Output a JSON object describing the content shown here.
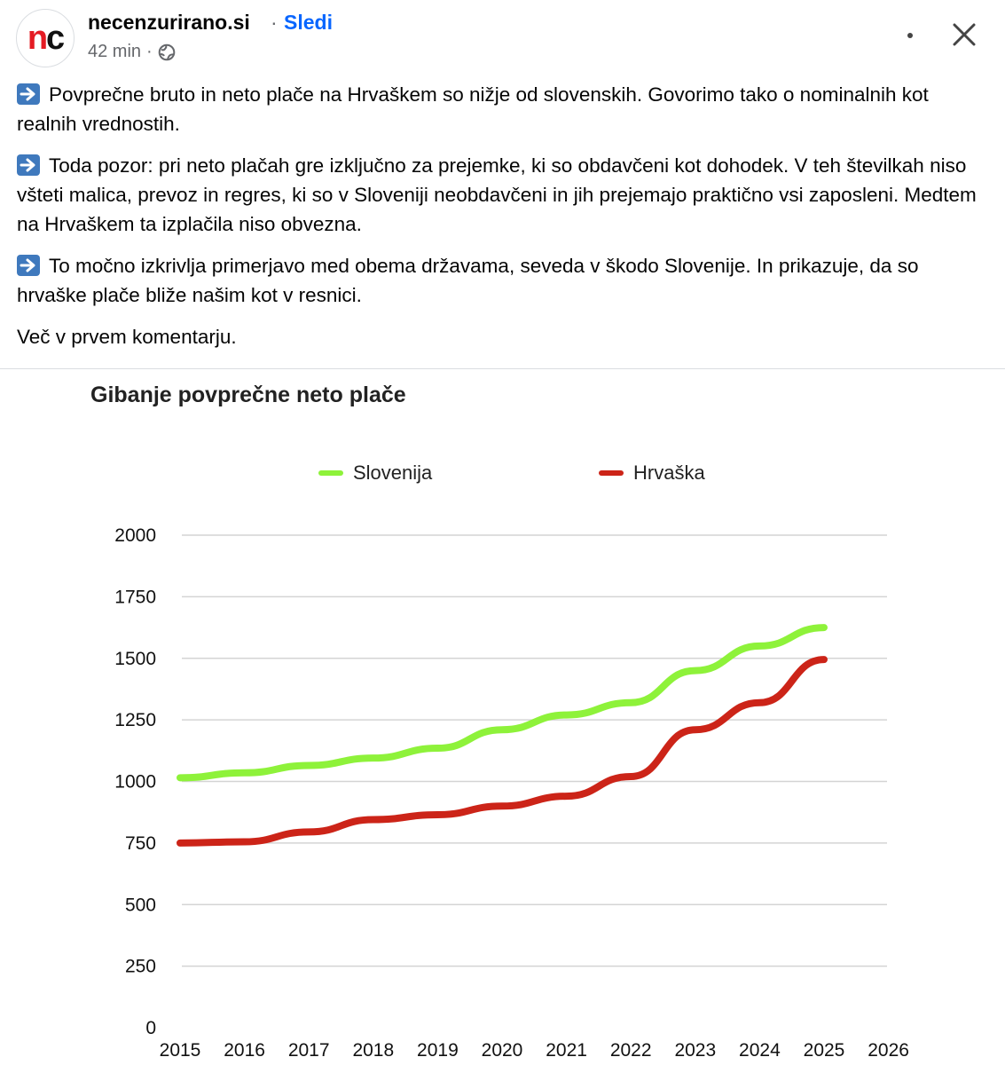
{
  "header": {
    "page_name": "necenzurirano.si",
    "separator": "·",
    "follow_label": "Sledi",
    "time": "42 min",
    "meta_sep": "·",
    "avatar_text_n": "n",
    "avatar_text_c": "c"
  },
  "icons": {
    "more": "more-horizontal-icon",
    "close": "close-icon",
    "globe": "globe-icon",
    "arrow": "right-arrow-emoji-icon"
  },
  "post": {
    "paragraphs": [
      "Povprečne bruto in neto plače na Hrvaškem so nižje od slovenskih. Govorimo tako o nominalnih kot realnih vrednostih.",
      "Toda pozor: pri neto plačah gre izključno za prejemke, ki so obdavčeni kot dohodek. V teh številkah niso všteti malica, prevoz in regres, ki so v Sloveniji neobdavčeni in jih prejemajo praktično vsi zaposleni. Medtem na Hrvaškem ta izplačila niso obvezna.",
      "To močno izkrivlja primerjavo med obema državama, seveda v škodo Slovenije. In prikazuje, da so hrvaške plače bliže našim kot v resnici.",
      "Več v prvem komentarju."
    ]
  },
  "colors": {
    "slovenija": "#8ef23a",
    "hrvaska": "#cc2418",
    "link": "#0866ff",
    "grid": "#d4d4d4"
  },
  "chart_data": {
    "type": "line",
    "title": "Gibanje povprečne neto plače",
    "x": [
      2015,
      2016,
      2017,
      2018,
      2019,
      2020,
      2021,
      2022,
      2023,
      2024,
      2025
    ],
    "x_ticks": [
      "2015",
      "2016",
      "2017",
      "2018",
      "2019",
      "2020",
      "2021",
      "2022",
      "2023",
      "2024",
      "2025",
      "2026"
    ],
    "y_ticks": [
      "0",
      "250",
      "500",
      "750",
      "1000",
      "1250",
      "1500",
      "1750",
      "2000"
    ],
    "ylim": [
      0,
      2000
    ],
    "xlim": [
      2015,
      2026
    ],
    "grid": true,
    "legend_position": "top",
    "series": [
      {
        "name": "Slovenija",
        "color": "#8ef23a",
        "values": [
          1015,
          1035,
          1065,
          1095,
          1135,
          1210,
          1270,
          1320,
          1450,
          1550,
          1625
        ]
      },
      {
        "name": "Hrvaška",
        "color": "#cc2418",
        "values": [
          750,
          755,
          795,
          845,
          865,
          900,
          940,
          1020,
          1210,
          1320,
          1495
        ]
      }
    ],
    "xlabel": "",
    "ylabel": ""
  }
}
